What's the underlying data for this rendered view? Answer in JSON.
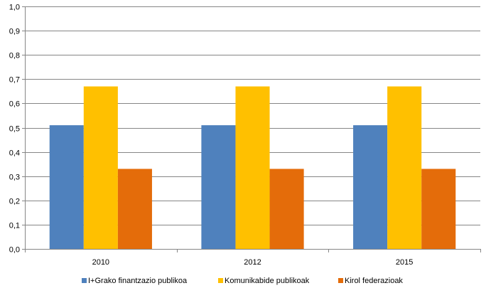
{
  "chart_data": {
    "type": "bar",
    "categories": [
      "2010",
      "2012",
      "2015"
    ],
    "series": [
      {
        "name": "I+Grako finantzazio publikoa",
        "values": [
          0.51,
          0.51,
          0.51
        ],
        "color": "#4f81bd"
      },
      {
        "name": "Komunikabide publikoak",
        "values": [
          0.67,
          0.67,
          0.67
        ],
        "color": "#ffc000"
      },
      {
        "name": "Kirol federazioak",
        "values": [
          0.33,
          0.33,
          0.33
        ],
        "color": "#e46c0a"
      }
    ],
    "ylim": [
      0,
      1.0
    ],
    "yticks": [
      "0,0",
      "0,1",
      "0,2",
      "0,3",
      "0,4",
      "0,5",
      "0,6",
      "0,7",
      "0,8",
      "0,9",
      "1,0"
    ],
    "grid": true,
    "legend_position": "bottom",
    "colors": {
      "gridline": "#868686",
      "axis": "#868686"
    }
  }
}
